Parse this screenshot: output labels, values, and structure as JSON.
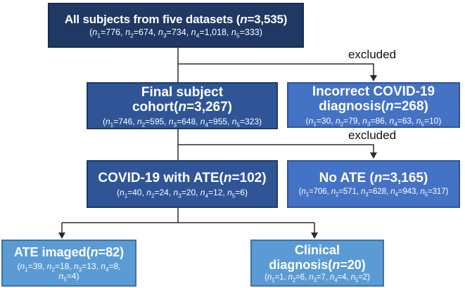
{
  "labels": {
    "excluded_top": "excluded",
    "excluded_bottom": "excluded"
  },
  "colors": {
    "dark_navy_fill": "#1f3864",
    "medium_blue_fill": "#2f5597",
    "accent_blue_fill": "#4472c4",
    "light_blue_fill": "#5b9bd5",
    "accent_blue_border": "#2f5496",
    "light_blue_border": "#41719c",
    "connector_line": "#2b2b2b",
    "box_text": "#ffffff",
    "label_text": "#111111"
  },
  "boxes": {
    "all_subjects": {
      "title": "All subjects from five datasets (n=3,535)",
      "sub": "(n_1=776, n_2=674, n_3=734, n_4=1,018, n_5=333)"
    },
    "final_cohort": {
      "title_line1": "Final subject",
      "title_line2": "cohort(n=3,267)",
      "sub": "(n_1=746, n_2=595, n_3=648, n_4=955, n_5=323)"
    },
    "incorrect_dx": {
      "title_line1": "Incorrect COVID-19",
      "title_line2": "diagnosis(n=268)",
      "sub": "(n_1=30, n_2=79, n_3=86, n_4=63, n_5=10)"
    },
    "covid_ate": {
      "title": "COVID-19 with ATE(n=102)",
      "sub": "(n_1=40, n_2=24, n_3=20, n_4=12, n_5=6)"
    },
    "no_ate": {
      "title": "No ATE (n=3,165)",
      "sub": "(n_1=706, n_2=571, n_3=628, n_4=943, n_5=317)"
    },
    "ate_imaged": {
      "title": "ATE imaged(n=82)",
      "sub_line1": "(n_1=39, n_2=18, n_3=13, n_4=8,",
      "sub_line2": "n_5=4)"
    },
    "clinical_dx": {
      "title_line1": "Clinical",
      "title_line2": "diagnosis(n=20)",
      "sub": "(n_1=1, n_2=6, n_3=7, n_4=4, n_5=2)"
    }
  }
}
